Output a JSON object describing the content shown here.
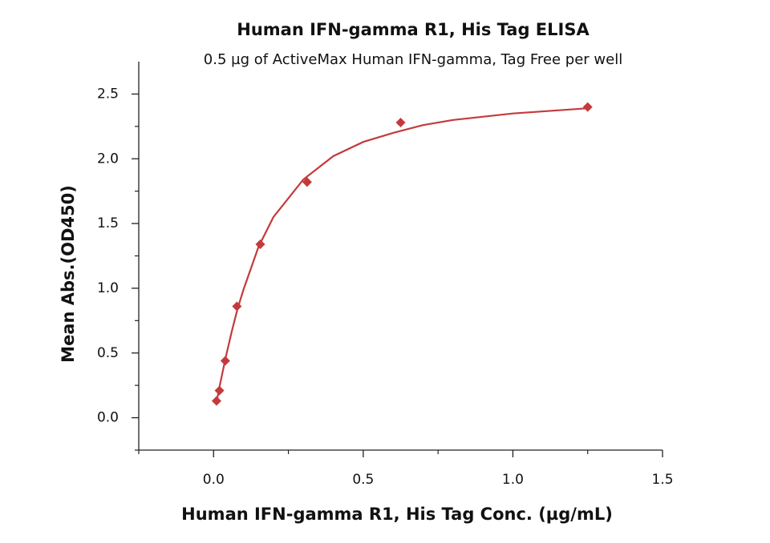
{
  "chart_data": {
    "type": "scatter",
    "title": "Human IFN-gamma R1, His Tag ELISA",
    "subtitle": "0.5 µg of ActiveMax Human IFN-gamma, Tag Free per well",
    "x_label": "Human IFN-gamma R1, His Tag Conc. (µg/mL)",
    "y_label": "Mean Abs.(OD450)",
    "xlim": [
      -0.25,
      1.5
    ],
    "ylim": [
      -0.25,
      2.75
    ],
    "xticks": [
      {
        "value": 0,
        "label": "0.0"
      },
      0.5,
      {
        "value": 1,
        "label": "1.0"
      },
      1.5
    ],
    "yticks": [
      {
        "value": 0,
        "label": "0.0"
      },
      0.5,
      {
        "value": 1,
        "label": "1.0"
      },
      1.5,
      {
        "value": 2,
        "label": "2.0"
      },
      2.5
    ],
    "xminor": [
      -0.25,
      0.25,
      0.75,
      1.25
    ],
    "yminor": [
      -0.25,
      0.25,
      0.75,
      1.25,
      1.75,
      2.25
    ],
    "series": [
      {
        "style": "markers",
        "color": "#c43a3c",
        "x": [
          0.0098,
          0.0195,
          0.039,
          0.078,
          0.156,
          0.3125,
          0.625,
          1.25
        ],
        "values": [
          0.13,
          0.21,
          0.44,
          0.86,
          1.34,
          1.82,
          2.28,
          2.4
        ]
      },
      {
        "style": "line",
        "color": "#c43a3c",
        "x": [
          0.01,
          0.02,
          0.04,
          0.06,
          0.08,
          0.1,
          0.15,
          0.2,
          0.3,
          0.4,
          0.5,
          0.6,
          0.7,
          0.8,
          1.0,
          1.25
        ],
        "values": [
          0.12,
          0.24,
          0.46,
          0.66,
          0.84,
          0.99,
          1.32,
          1.55,
          1.84,
          2.02,
          2.13,
          2.2,
          2.26,
          2.3,
          2.35,
          2.39
        ]
      }
    ]
  }
}
